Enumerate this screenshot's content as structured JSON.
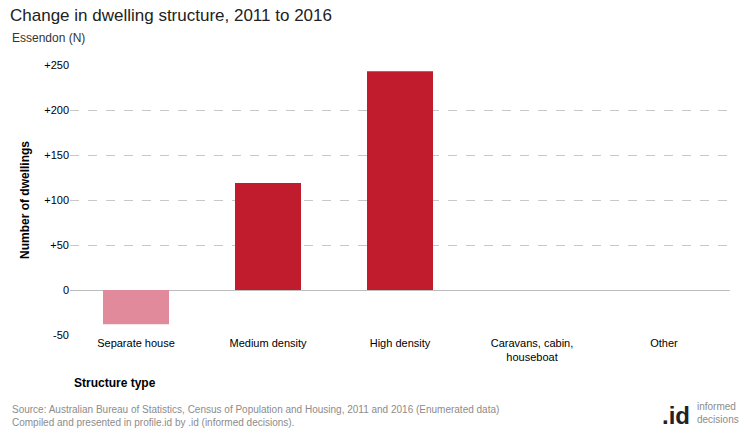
{
  "chart_data": {
    "type": "bar",
    "title": "Change in dwelling structure, 2011 to 2016",
    "subtitle": "Essendon (N)",
    "x_label": "Structure type",
    "y_label": "Number of dwellings",
    "categories": [
      "Separate house",
      "Medium density",
      "High density",
      "Caravans, cabin, houseboat",
      "Other"
    ],
    "values": [
      -38,
      119,
      243,
      0,
      0
    ],
    "colors": [
      "#e08a9b",
      "#c11b2e",
      "#c11b2e",
      "#c11b2e",
      "#c11b2e"
    ],
    "ylim": [
      -50,
      250
    ],
    "yticks": [
      -50,
      0,
      {
        "value": 50,
        "label": "+50"
      },
      {
        "value": 100,
        "label": "+100"
      },
      {
        "value": 150,
        "label": "+150"
      },
      {
        "value": 200,
        "label": "+200"
      },
      {
        "value": 250,
        "label": "+250"
      }
    ],
    "grid": true,
    "source": [
      "Source: Australian Bureau of Statistics, Census of Population and Housing, 2011 and 2016 (Enumerated data)",
      "Compiled and presented in profile.id by .id (informed decisions)."
    ],
    "logo": [
      ".id",
      "informed decisions"
    ]
  }
}
